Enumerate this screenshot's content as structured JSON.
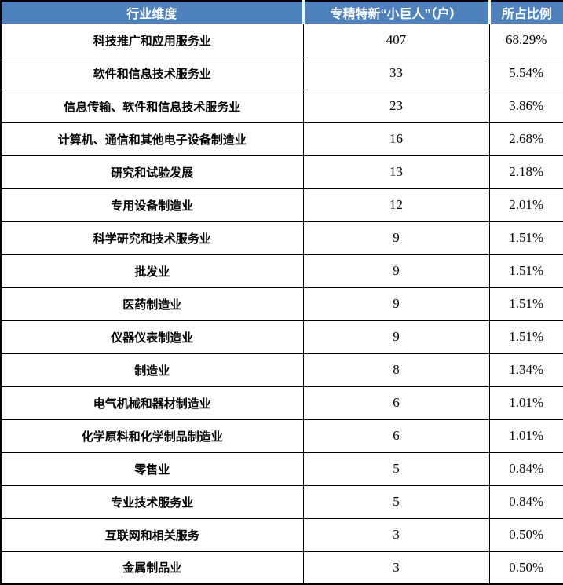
{
  "colors": {
    "header_bg": "#4F81BD",
    "header_text": "#FFFFFF",
    "border": "#000000",
    "body_bg": "#FFFFFF",
    "body_text": "#000000"
  },
  "table": {
    "headers": [
      "行业维度",
      "专精特新“小巨人”（户）",
      "所占比例"
    ],
    "rows": [
      {
        "industry": "科技推广和应用服务业",
        "count": "407",
        "ratio": "68.29%"
      },
      {
        "industry": "软件和信息技术服务业",
        "count": "33",
        "ratio": "5.54%"
      },
      {
        "industry": "信息传输、软件和信息技术服务业",
        "count": "23",
        "ratio": "3.86%"
      },
      {
        "industry": "计算机、通信和其他电子设备制造业",
        "count": "16",
        "ratio": "2.68%"
      },
      {
        "industry": "研究和试验发展",
        "count": "13",
        "ratio": "2.18%"
      },
      {
        "industry": "专用设备制造业",
        "count": "12",
        "ratio": "2.01%"
      },
      {
        "industry": "科学研究和技术服务业",
        "count": "9",
        "ratio": "1.51%"
      },
      {
        "industry": "批发业",
        "count": "9",
        "ratio": "1.51%"
      },
      {
        "industry": "医药制造业",
        "count": "9",
        "ratio": "1.51%"
      },
      {
        "industry": "仪器仪表制造业",
        "count": "9",
        "ratio": "1.51%"
      },
      {
        "industry": "制造业",
        "count": "8",
        "ratio": "1.34%"
      },
      {
        "industry": "电气机械和器材制造业",
        "count": "6",
        "ratio": "1.01%"
      },
      {
        "industry": "化学原料和化学制品制造业",
        "count": "6",
        "ratio": "1.01%"
      },
      {
        "industry": "零售业",
        "count": "5",
        "ratio": "0.84%"
      },
      {
        "industry": "专业技术服务业",
        "count": "5",
        "ratio": "0.84%"
      },
      {
        "industry": "互联网和相关服务",
        "count": "3",
        "ratio": "0.50%"
      },
      {
        "industry": "金属制品业",
        "count": "3",
        "ratio": "0.50%"
      }
    ]
  }
}
